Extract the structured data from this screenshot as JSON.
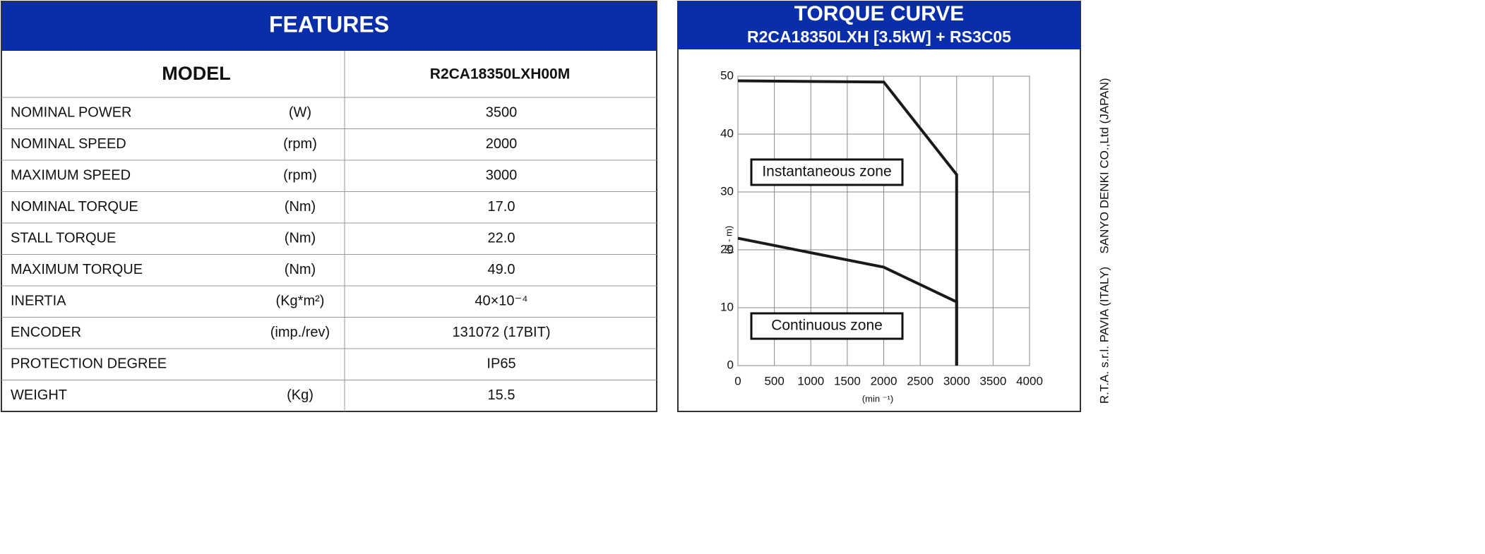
{
  "features": {
    "title": "FEATURES",
    "model_label": "MODEL",
    "model": "R2CA18350LXH00M",
    "rows": [
      {
        "name": "NOMINAL POWER",
        "unit": "(W)",
        "value": "3500"
      },
      {
        "name": "NOMINAL SPEED",
        "unit": "(rpm)",
        "value": "2000"
      },
      {
        "name": "MAXIMUM SPEED",
        "unit": "(rpm)",
        "value": "3000"
      },
      {
        "name": "NOMINAL TORQUE",
        "unit": "(Nm)",
        "value": "17.0"
      },
      {
        "name": "STALL TORQUE",
        "unit": "(Nm)",
        "value": "22.0"
      },
      {
        "name": "MAXIMUM TORQUE",
        "unit": "(Nm)",
        "value": "49.0"
      },
      {
        "name": "INERTIA",
        "unit": "(Kg*m²)",
        "value": "40×10⁻⁴"
      },
      {
        "name": "ENCODER",
        "unit": "(imp./rev)",
        "value": "131072 (17BIT)"
      },
      {
        "name": "PROTECTION DEGREE",
        "value": "IP65"
      },
      {
        "name": "WEIGHT",
        "unit": "(Kg)",
        "value": "15.5"
      }
    ]
  },
  "chart_data": {
    "type": "line",
    "title": "TORQUE CURVE",
    "subtitle": "R2CA18350LXH [3.5kW] + RS3C05",
    "x_label": "(min ⁻¹)",
    "y_label": "(N - m)",
    "xlim": [
      0,
      4000
    ],
    "xticks": [
      0,
      500,
      1000,
      1500,
      2000,
      2500,
      3000,
      3500,
      4000
    ],
    "ylim": [
      0,
      50
    ],
    "yticks": [
      0,
      10,
      20,
      30,
      40,
      50
    ],
    "grid": true,
    "series": [
      {
        "name": "Instantaneous zone",
        "color": "#1a1a1a",
        "x": [
          0,
          2000,
          3000,
          3000
        ],
        "values": [
          49.2,
          49,
          33,
          0
        ]
      },
      {
        "name": "Continuous zone",
        "color": "#1a1a1a",
        "x": [
          0,
          2000,
          3000,
          3000
        ],
        "values": [
          22,
          17,
          11,
          0
        ]
      }
    ],
    "annotations": [
      "3Φ"
    ]
  },
  "side_text": [
    "SANYO DENKI CO.,Ltd (JAPAN)",
    "R.T.A.  s.r.l.  PAVIA (ITALY)"
  ]
}
